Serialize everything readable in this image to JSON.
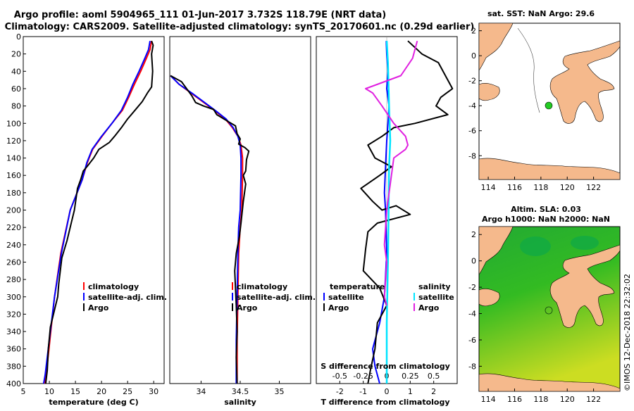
{
  "title": {
    "line1": "Argo profile: aoml 5904965_111 01-Jun-2017 3.732S 118.79E (NRT data)",
    "line2": "Climatology: CARS2009. Satellite-adjusted climatology: synTS_20170601.nc (0.29d earlier)"
  },
  "colors": {
    "climatology": "#ff0000",
    "satellite": "#0000ff",
    "argo": "#000000",
    "sat_salinity": "#00e5ff",
    "argo_salinity_diff": "#e020e0",
    "land": "#f5b98c",
    "sea_green": "#22bb22",
    "marker_green": "#22cc22"
  },
  "depth_axis": {
    "ticks": [
      "0",
      "20",
      "40",
      "60",
      "80",
      "100",
      "120",
      "140",
      "160",
      "180",
      "200",
      "220",
      "240",
      "260",
      "280",
      "300",
      "320",
      "340",
      "360",
      "380",
      "400"
    ]
  },
  "chart_data": [
    {
      "type": "line",
      "panel": "temperature",
      "xlabel": "temperature (deg C)",
      "ylabel": "depth",
      "xlim": [
        5,
        32
      ],
      "ylim": [
        400,
        0
      ],
      "xticks": [
        "5",
        "10",
        "15",
        "20",
        "25",
        "30"
      ],
      "legend": [
        "climatology",
        "satellite-adj. clim.",
        "Argo"
      ],
      "series": [
        {
          "name": "climatology",
          "x": [
            29.6,
            29.3,
            28.6,
            27.5,
            26.3,
            25.2,
            24.0,
            22.0,
            20.1,
            18.3,
            17.3,
            16.3,
            14.0,
            12.2,
            11.0,
            10.1,
            9.4,
            9.1
          ],
          "y": [
            5,
            15,
            25,
            40,
            55,
            70,
            85,
            100,
            115,
            130,
            145,
            165,
            200,
            250,
            300,
            350,
            390,
            400
          ]
        },
        {
          "name": "satellite-adj. clim.",
          "x": [
            29.3,
            29.0,
            28.3,
            27.2,
            26.0,
            25.0,
            23.8,
            22.0,
            20.0,
            18.2,
            17.2,
            16.3,
            14.0,
            12.3,
            11.0,
            10.0,
            9.2,
            8.9
          ],
          "y": [
            5,
            15,
            25,
            40,
            55,
            70,
            85,
            100,
            115,
            130,
            145,
            165,
            200,
            250,
            300,
            350,
            390,
            400
          ]
        },
        {
          "name": "Argo",
          "x": [
            29.6,
            29.9,
            29.6,
            29.8,
            29.6,
            28.8,
            27.8,
            26.4,
            25.0,
            23.8,
            22.5,
            21.5,
            19.5,
            18.5,
            17.2,
            16.5,
            16.0,
            15.4,
            14.8,
            14.2,
            13.4,
            12.4,
            11.8,
            11.6,
            11.0,
            10.2,
            9.8,
            9.6,
            9.3
          ],
          "y": [
            5,
            10,
            20,
            40,
            58,
            65,
            75,
            85,
            95,
            105,
            115,
            122,
            130,
            140,
            150,
            155,
            165,
            175,
            200,
            215,
            235,
            255,
            285,
            300,
            315,
            335,
            360,
            385,
            400
          ]
        }
      ]
    },
    {
      "type": "line",
      "panel": "salinity",
      "xlabel": "salinity",
      "ylabel": "depth",
      "xlim": [
        33.6,
        35.4
      ],
      "ylim": [
        400,
        0
      ],
      "xticks": [
        "34",
        "34.5",
        "35"
      ],
      "legend": [
        "climatology",
        "satellite-adj. clim.",
        "Argo"
      ],
      "series": [
        {
          "name": "climatology",
          "x": [
            33.61,
            33.72,
            33.87,
            34.02,
            34.17,
            34.31,
            34.4,
            34.47,
            34.51,
            34.53,
            34.53,
            34.52,
            34.5,
            34.48,
            34.47,
            34.46,
            34.46
          ],
          "y": [
            45,
            55,
            65,
            75,
            85,
            95,
            105,
            115,
            125,
            140,
            160,
            200,
            220,
            250,
            300,
            350,
            400
          ]
        },
        {
          "name": "satellite-adj. clim.",
          "x": [
            33.61,
            33.72,
            33.88,
            34.03,
            34.18,
            34.32,
            34.41,
            34.47,
            34.5,
            34.51,
            34.51,
            34.5,
            34.48,
            34.47,
            34.46,
            34.45,
            34.45
          ],
          "y": [
            45,
            55,
            65,
            75,
            85,
            95,
            105,
            115,
            125,
            140,
            160,
            200,
            220,
            250,
            300,
            350,
            400
          ]
        },
        {
          "name": "Argo",
          "x": [
            33.61,
            33.75,
            33.88,
            33.93,
            34.03,
            34.16,
            34.2,
            34.31,
            34.44,
            34.46,
            34.5,
            34.48,
            34.56,
            34.61,
            34.58,
            34.57,
            34.54,
            34.57,
            34.54,
            34.51,
            34.49,
            34.45,
            34.43,
            34.44,
            34.45,
            34.46,
            34.45,
            34.46
          ],
          "y": [
            45,
            52,
            68,
            76,
            80,
            84,
            90,
            96,
            103,
            112,
            118,
            124,
            128,
            132,
            142,
            155,
            160,
            170,
            190,
            215,
            230,
            250,
            270,
            290,
            310,
            340,
            370,
            400
          ]
        }
      ]
    },
    {
      "type": "line",
      "panel": "difference",
      "xlabel": "T difference from climatology",
      "ylabel": "depth",
      "xlim": [
        -3.0,
        3.0
      ],
      "ylim": [
        400,
        0
      ],
      "xticks": [
        "-2",
        "-1",
        "0",
        "1",
        "2"
      ],
      "top_axis_label": "S difference from climatology",
      "top_ticks": [
        "-0.5",
        "-0.25",
        "0",
        "0.25",
        "0.5"
      ],
      "legend": [
        "temperature satellite",
        "temperature Argo",
        "salinity satellite",
        "salinity Argo"
      ],
      "series": [
        {
          "name": "temperature satellite",
          "x": [
            -0.02,
            0.0,
            0.05,
            0.0,
            0.1,
            0.05,
            0.0,
            -0.05,
            -0.1,
            -0.05,
            0.0,
            -0.1,
            -0.3,
            -0.6,
            -0.5,
            -0.3
          ],
          "y": [
            5,
            20,
            40,
            60,
            80,
            100,
            120,
            150,
            180,
            200,
            250,
            300,
            330,
            360,
            380,
            400
          ]
        },
        {
          "name": "temperature Argo",
          "x": [
            0.9,
            1.5,
            2.2,
            2.8,
            2.3,
            2.1,
            2.6,
            1.2,
            0.3,
            -0.2,
            -0.8,
            -0.5,
            0.2,
            -0.3,
            -1.1,
            -0.6,
            -0.2,
            0.4,
            1.0,
            -0.4,
            -0.8,
            -0.9,
            -1.0,
            -0.3,
            0.0,
            -0.4,
            -0.5,
            -0.7,
            -0.8
          ],
          "y": [
            5,
            20,
            30,
            60,
            70,
            80,
            90,
            100,
            105,
            115,
            125,
            140,
            150,
            160,
            175,
            190,
            200,
            195,
            205,
            215,
            225,
            245,
            270,
            290,
            310,
            330,
            360,
            385,
            400
          ]
        },
        {
          "name": "salinity satellite",
          "x": [
            0.0,
            0.05,
            0.1,
            0.15,
            0.1,
            0.08,
            0.05,
            0.0,
            0.0
          ],
          "y": [
            5,
            30,
            80,
            120,
            150,
            200,
            260,
            330,
            400
          ]
        },
        {
          "name": "salinity Argo",
          "x": [
            1.3,
            1.1,
            0.6,
            -0.9,
            -0.6,
            -0.2,
            0.3,
            0.8,
            0.9,
            0.8,
            0.3,
            0.0,
            -0.1,
            0.0,
            -0.1,
            0.0
          ],
          "y": [
            5,
            25,
            45,
            60,
            65,
            80,
            100,
            115,
            125,
            130,
            140,
            200,
            240,
            260,
            300,
            310
          ]
        }
      ]
    }
  ],
  "legends": {
    "clim": "climatology",
    "sat": "satellite-adj. clim.",
    "argo": "Argo",
    "temperature": "temperature",
    "salinity": "salinity",
    "satellite": "satellite",
    "argo_short": "Argo"
  },
  "map_sst": {
    "title": "sat. SST: NaN Argo: 29.6",
    "xticks": [
      "114",
      "116",
      "118",
      "120",
      "122"
    ],
    "yticks": [
      "2",
      "0",
      "-2",
      "-4",
      "-6",
      "-8"
    ]
  },
  "map_sla": {
    "title1": "Altim. SLA: 0.03",
    "title2": "Argo h1000: NaN h2000: NaN",
    "xticks": [
      "114",
      "116",
      "118",
      "120",
      "122"
    ],
    "yticks": [
      "2",
      "0",
      "-2",
      "-4",
      "-6",
      "-8"
    ]
  },
  "watermark": "©IMOS 12-Dec-2018 22:32:02"
}
